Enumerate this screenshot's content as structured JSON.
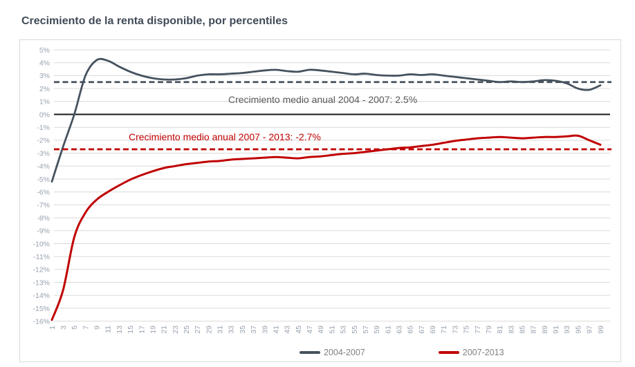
{
  "chart_data": {
    "type": "line",
    "title": "Crecimiento de la renta disponible, por percentiles",
    "xlabel": "",
    "ylabel": "",
    "x_axis_note": "percentiles, odd values 1-99, labels rotated 90 degrees",
    "x": [
      1,
      3,
      5,
      7,
      9,
      11,
      13,
      15,
      17,
      19,
      21,
      23,
      25,
      27,
      29,
      31,
      33,
      35,
      37,
      39,
      41,
      43,
      45,
      47,
      49,
      51,
      53,
      55,
      57,
      59,
      61,
      63,
      65,
      67,
      69,
      71,
      73,
      75,
      77,
      79,
      81,
      83,
      85,
      87,
      89,
      91,
      93,
      95,
      97,
      99
    ],
    "yticks": [
      5,
      4,
      3,
      2,
      1,
      0,
      -1,
      -2,
      -3,
      -4,
      -5,
      -6,
      -7,
      -8,
      -9,
      -10,
      -11,
      -12,
      -13,
      -14,
      -15,
      -16
    ],
    "ytick_suffix": "%",
    "ylim": [
      -16,
      5
    ],
    "grid": true,
    "zero_line": true,
    "legend_position": "bottom-center",
    "series": [
      {
        "name": "2004-2007",
        "color": "#46525E",
        "mean": 2.5,
        "annotation": "Crecimiento medio anual 2004 - 2007: 2.5%",
        "values": [
          -5.2,
          -2.5,
          0.0,
          3.0,
          4.2,
          4.15,
          3.7,
          3.3,
          3.0,
          2.8,
          2.7,
          2.7,
          2.8,
          3.0,
          3.1,
          3.1,
          3.15,
          3.2,
          3.3,
          3.4,
          3.45,
          3.35,
          3.3,
          3.45,
          3.4,
          3.3,
          3.2,
          3.1,
          3.15,
          3.05,
          3.0,
          3.0,
          3.1,
          3.05,
          3.1,
          3.0,
          2.9,
          2.8,
          2.7,
          2.6,
          2.5,
          2.55,
          2.5,
          2.55,
          2.65,
          2.6,
          2.4,
          2.0,
          1.9,
          2.25
        ]
      },
      {
        "name": "2007-2013",
        "color": "#C00000",
        "mean": -2.7,
        "annotation": "Crecimiento medio anual 2007 - 2013: -2.7%",
        "values": [
          -15.9,
          -13.6,
          -9.5,
          -7.6,
          -6.6,
          -6.0,
          -5.5,
          -5.05,
          -4.7,
          -4.4,
          -4.15,
          -4.0,
          -3.85,
          -3.75,
          -3.65,
          -3.6,
          -3.5,
          -3.45,
          -3.4,
          -3.35,
          -3.3,
          -3.35,
          -3.4,
          -3.3,
          -3.25,
          -3.15,
          -3.05,
          -3.0,
          -2.9,
          -2.8,
          -2.7,
          -2.6,
          -2.55,
          -2.45,
          -2.35,
          -2.2,
          -2.05,
          -1.95,
          -1.85,
          -1.8,
          -1.75,
          -1.8,
          -1.85,
          -1.8,
          -1.75,
          -1.75,
          -1.7,
          -1.65,
          -2.0,
          -2.35
        ]
      }
    ],
    "style": {
      "gridline_color": "#D9D9D9",
      "border_color": "#D9D9D9",
      "zero_line_color": "#1A1A1A",
      "tick_label_color": "#97A1AF",
      "annotation_gray_color": "#595959",
      "title_color": "#414B57",
      "legend_text_color": "#7F7F7F"
    }
  }
}
